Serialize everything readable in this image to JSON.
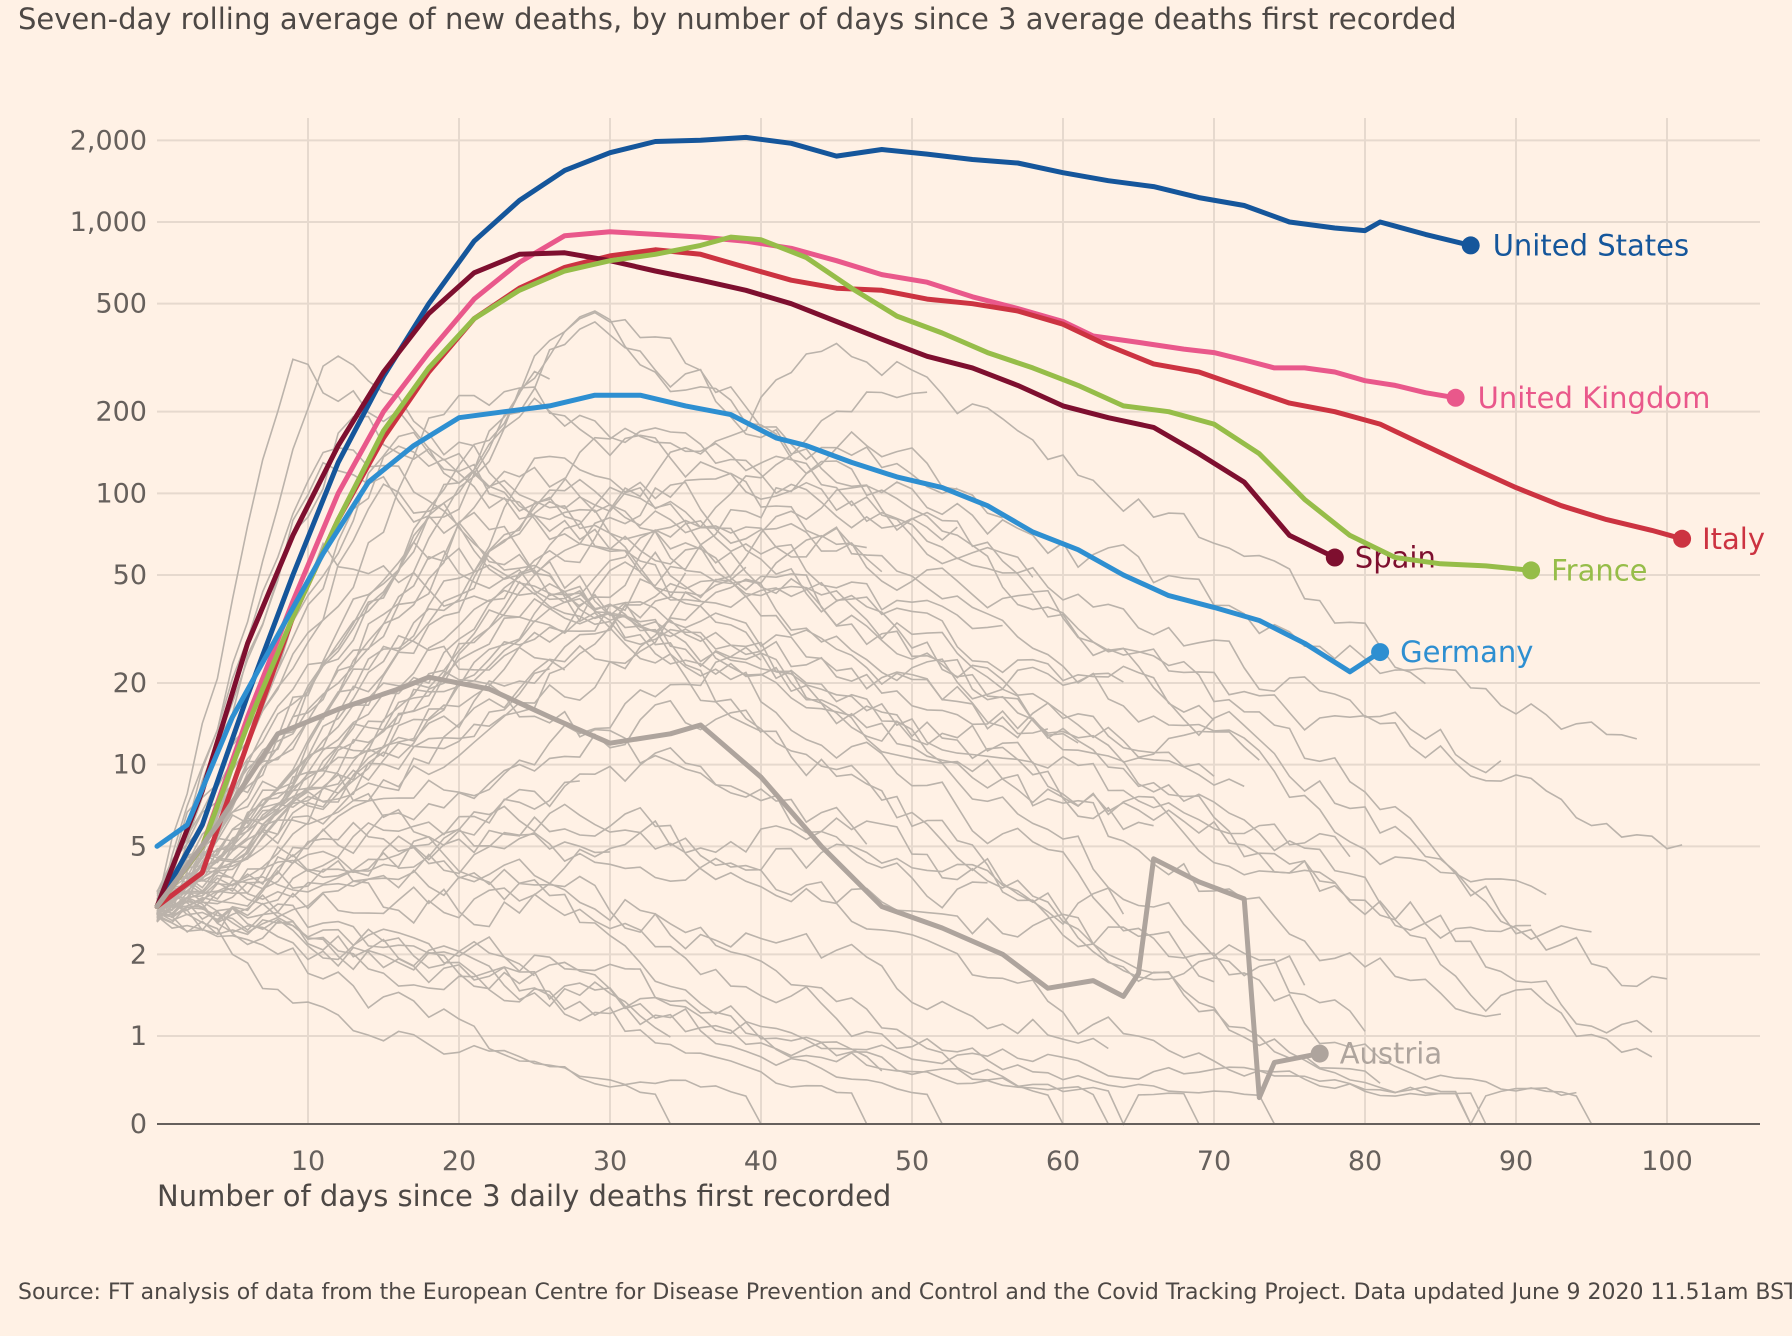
{
  "chart_data": {
    "type": "line",
    "title": "Seven-day rolling average of new deaths, by number of days since 3 average deaths first recorded",
    "xlabel": "Number of days since 3 daily deaths first recorded",
    "ylabel": "",
    "scale": "log",
    "xlim": [
      0,
      107
    ],
    "ylim": [
      0,
      2400
    ],
    "grid": true,
    "x_ticks": [
      10,
      20,
      30,
      40,
      50,
      60,
      70,
      80,
      90,
      100
    ],
    "x_tick_labels": [
      "10",
      "20",
      "30",
      "40",
      "50",
      "60",
      "70",
      "80",
      "90",
      "100"
    ],
    "y_ticks": [
      0,
      1,
      2,
      5,
      10,
      20,
      50,
      100,
      200,
      500,
      1000,
      2000
    ],
    "y_tick_labels": [
      "0",
      "1",
      "2",
      "5",
      "10",
      "20",
      "50",
      "100",
      "200",
      "500",
      "1,000",
      "2,000"
    ],
    "background_series_color": "#bbb3ab",
    "series": [
      {
        "name": "United States",
        "color": "#15569b",
        "end_marker": true,
        "points": [
          [
            0,
            3
          ],
          [
            3,
            6
          ],
          [
            6,
            18
          ],
          [
            9,
            50
          ],
          [
            12,
            130
          ],
          [
            15,
            270
          ],
          [
            18,
            500
          ],
          [
            21,
            850
          ],
          [
            24,
            1200
          ],
          [
            27,
            1550
          ],
          [
            30,
            1800
          ],
          [
            33,
            1980
          ],
          [
            36,
            2000
          ],
          [
            39,
            2050
          ],
          [
            42,
            1950
          ],
          [
            45,
            1750
          ],
          [
            48,
            1850
          ],
          [
            51,
            1780
          ],
          [
            54,
            1700
          ],
          [
            57,
            1650
          ],
          [
            60,
            1520
          ],
          [
            63,
            1420
          ],
          [
            66,
            1350
          ],
          [
            69,
            1230
          ],
          [
            72,
            1150
          ],
          [
            75,
            1000
          ],
          [
            78,
            950
          ],
          [
            80,
            930
          ],
          [
            81,
            1000
          ],
          [
            84,
            900
          ],
          [
            87,
            820
          ]
        ]
      },
      {
        "name": "United Kingdom",
        "color": "#e9588b",
        "end_marker": true,
        "points": [
          [
            0,
            3
          ],
          [
            3,
            5
          ],
          [
            6,
            15
          ],
          [
            9,
            40
          ],
          [
            12,
            100
          ],
          [
            15,
            200
          ],
          [
            18,
            330
          ],
          [
            21,
            520
          ],
          [
            24,
            710
          ],
          [
            27,
            890
          ],
          [
            30,
            920
          ],
          [
            33,
            900
          ],
          [
            36,
            880
          ],
          [
            39,
            850
          ],
          [
            42,
            800
          ],
          [
            45,
            720
          ],
          [
            48,
            640
          ],
          [
            51,
            600
          ],
          [
            54,
            530
          ],
          [
            57,
            480
          ],
          [
            60,
            430
          ],
          [
            62,
            380
          ],
          [
            65,
            360
          ],
          [
            68,
            340
          ],
          [
            70,
            330
          ],
          [
            72,
            310
          ],
          [
            74,
            290
          ],
          [
            76,
            290
          ],
          [
            78,
            280
          ],
          [
            80,
            260
          ],
          [
            82,
            250
          ],
          [
            84,
            235
          ],
          [
            86,
            225
          ]
        ]
      },
      {
        "name": "Italy",
        "color": "#cc3341",
        "end_marker": true,
        "points": [
          [
            0,
            3
          ],
          [
            3,
            4
          ],
          [
            6,
            12
          ],
          [
            9,
            35
          ],
          [
            12,
            80
          ],
          [
            15,
            160
          ],
          [
            18,
            280
          ],
          [
            21,
            440
          ],
          [
            24,
            570
          ],
          [
            27,
            680
          ],
          [
            30,
            750
          ],
          [
            33,
            790
          ],
          [
            36,
            760
          ],
          [
            39,
            680
          ],
          [
            42,
            610
          ],
          [
            45,
            570
          ],
          [
            48,
            560
          ],
          [
            51,
            520
          ],
          [
            54,
            500
          ],
          [
            57,
            470
          ],
          [
            60,
            420
          ],
          [
            63,
            350
          ],
          [
            66,
            300
          ],
          [
            69,
            280
          ],
          [
            72,
            245
          ],
          [
            75,
            215
          ],
          [
            78,
            200
          ],
          [
            81,
            180
          ],
          [
            84,
            150
          ],
          [
            87,
            125
          ],
          [
            90,
            105
          ],
          [
            93,
            90
          ],
          [
            96,
            80
          ],
          [
            99,
            73
          ],
          [
            101,
            68
          ]
        ]
      },
      {
        "name": "Spain",
        "color": "#7e0f2f",
        "end_marker": true,
        "points": [
          [
            0,
            3
          ],
          [
            3,
            8
          ],
          [
            6,
            28
          ],
          [
            9,
            70
          ],
          [
            12,
            150
          ],
          [
            15,
            280
          ],
          [
            18,
            460
          ],
          [
            21,
            650
          ],
          [
            24,
            760
          ],
          [
            27,
            770
          ],
          [
            30,
            720
          ],
          [
            33,
            660
          ],
          [
            36,
            610
          ],
          [
            39,
            560
          ],
          [
            42,
            500
          ],
          [
            45,
            430
          ],
          [
            48,
            370
          ],
          [
            51,
            320
          ],
          [
            54,
            290
          ],
          [
            57,
            250
          ],
          [
            60,
            210
          ],
          [
            63,
            190
          ],
          [
            66,
            175
          ],
          [
            69,
            140
          ],
          [
            72,
            110
          ],
          [
            75,
            70
          ],
          [
            78,
            58
          ]
        ]
      },
      {
        "name": "France",
        "color": "#96bd49",
        "end_marker": true,
        "points": [
          [
            0,
            3
          ],
          [
            3,
            5
          ],
          [
            6,
            14
          ],
          [
            9,
            35
          ],
          [
            12,
            80
          ],
          [
            15,
            170
          ],
          [
            18,
            290
          ],
          [
            21,
            440
          ],
          [
            24,
            560
          ],
          [
            27,
            660
          ],
          [
            30,
            720
          ],
          [
            33,
            760
          ],
          [
            36,
            820
          ],
          [
            38,
            880
          ],
          [
            40,
            860
          ],
          [
            43,
            740
          ],
          [
            46,
            570
          ],
          [
            49,
            450
          ],
          [
            52,
            390
          ],
          [
            55,
            330
          ],
          [
            58,
            290
          ],
          [
            61,
            250
          ],
          [
            64,
            210
          ],
          [
            67,
            200
          ],
          [
            70,
            180
          ],
          [
            73,
            140
          ],
          [
            76,
            95
          ],
          [
            79,
            70
          ],
          [
            82,
            58
          ],
          [
            85,
            55
          ],
          [
            88,
            54
          ],
          [
            91,
            52
          ]
        ]
      },
      {
        "name": "Germany",
        "color": "#2e8fd1",
        "end_marker": true,
        "points": [
          [
            0,
            5
          ],
          [
            2,
            6
          ],
          [
            5,
            15
          ],
          [
            8,
            30
          ],
          [
            11,
            60
          ],
          [
            14,
            110
          ],
          [
            17,
            150
          ],
          [
            20,
            190
          ],
          [
            23,
            200
          ],
          [
            26,
            210
          ],
          [
            29,
            230
          ],
          [
            32,
            230
          ],
          [
            35,
            210
          ],
          [
            38,
            195
          ],
          [
            41,
            160
          ],
          [
            43,
            150
          ],
          [
            46,
            130
          ],
          [
            49,
            115
          ],
          [
            52,
            105
          ],
          [
            55,
            90
          ],
          [
            58,
            72
          ],
          [
            61,
            62
          ],
          [
            64,
            50
          ],
          [
            67,
            42
          ],
          [
            70,
            38
          ],
          [
            73,
            34
          ],
          [
            76,
            28
          ],
          [
            79,
            22
          ],
          [
            81,
            26
          ]
        ]
      },
      {
        "name": "Austria",
        "color": "#aea49d",
        "end_marker": true,
        "points": [
          [
            0,
            3
          ],
          [
            4,
            6
          ],
          [
            8,
            13
          ],
          [
            12,
            16
          ],
          [
            16,
            19
          ],
          [
            18,
            21
          ],
          [
            22,
            19
          ],
          [
            26,
            15
          ],
          [
            30,
            12
          ],
          [
            34,
            13
          ],
          [
            36,
            14
          ],
          [
            40,
            9
          ],
          [
            44,
            5
          ],
          [
            48,
            3
          ],
          [
            52,
            2.5
          ],
          [
            56,
            2
          ],
          [
            59,
            1.5
          ],
          [
            62,
            1.6
          ],
          [
            64,
            1.4
          ],
          [
            65,
            1.7
          ],
          [
            66,
            4.5
          ],
          [
            69,
            3.7
          ],
          [
            72,
            3.2
          ],
          [
            73,
            0.3
          ],
          [
            74,
            0.7
          ],
          [
            77,
            0.8
          ]
        ]
      }
    ]
  },
  "source_text": "Source: FT analysis of data from the European Centre for Disease Prevention and Control and the Covid Tracking Project. Data updated June 9 2020 11.51am BST"
}
